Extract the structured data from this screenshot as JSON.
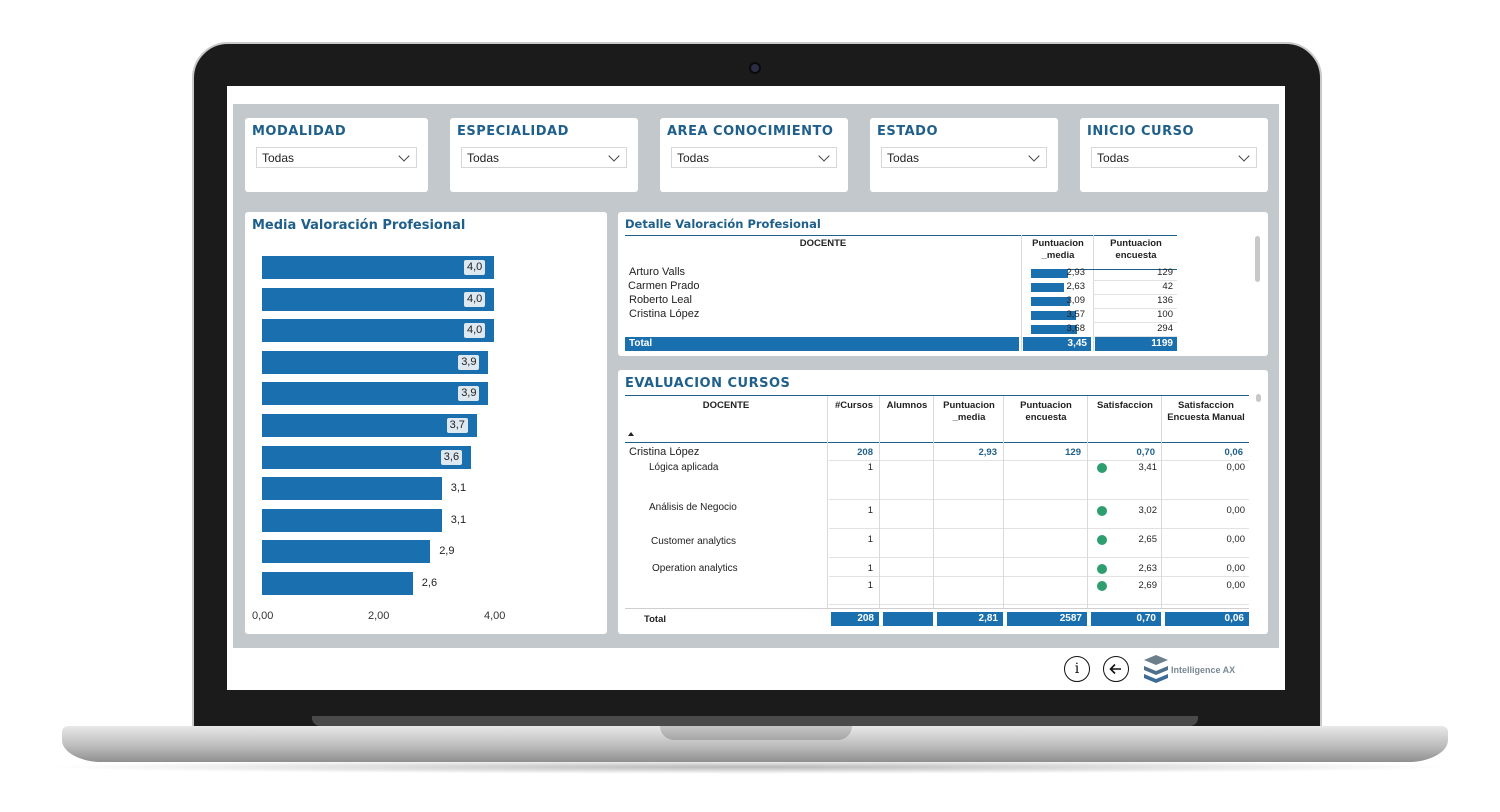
{
  "filters": [
    {
      "title": "MODALIDAD",
      "value": "Todas"
    },
    {
      "title": "ESPECIALIDAD",
      "value": "Todas"
    },
    {
      "title": "AREA CONOCIMIENTO",
      "value": "Todas"
    },
    {
      "title": "ESTADO",
      "value": "Todas"
    },
    {
      "title": "INICIO CURSO",
      "value": "Todas"
    }
  ],
  "chart_panel": {
    "title": "Media Valoración Profesional"
  },
  "chart_data": {
    "type": "bar",
    "orientation": "horizontal",
    "values": [
      4.0,
      4.0,
      4.0,
      3.9,
      3.9,
      3.7,
      3.6,
      3.1,
      3.1,
      2.9,
      2.6
    ],
    "labels": [
      "4,0",
      "4,0",
      "4,0",
      "3,9",
      "3,9",
      "3,7",
      "3,6",
      "3,1",
      "3,1",
      "2,9",
      "2,6"
    ],
    "xticks": [
      "0,00",
      "2,00",
      "4,00"
    ],
    "xlim": [
      0,
      4.2
    ],
    "color": "#1a6fae"
  },
  "detail": {
    "title": "Detalle Valoración Profesional",
    "headers": {
      "docente": "DOCENTE",
      "media": "Puntuacion _media",
      "encuesta": "Puntuacion encuesta"
    },
    "rows": [
      {
        "name": "Arturo Valls",
        "media": "2,93",
        "media_value": 2.93,
        "encuesta": "129"
      },
      {
        "name": "Carmen Prado",
        "media": "2,63",
        "media_value": 2.63,
        "encuesta": "42"
      },
      {
        "name": "Roberto Leal",
        "media": "3,09",
        "media_value": 3.09,
        "encuesta": "136"
      },
      {
        "name": "Cristina López",
        "media": "3,57",
        "media_value": 3.57,
        "encuesta": "100"
      },
      {
        "name": "",
        "media": "3,68",
        "media_value": 3.68,
        "encuesta": "294"
      }
    ],
    "total": {
      "label": "Total",
      "media": "3,45",
      "encuesta": "1199"
    }
  },
  "evaluacion": {
    "title": "EVALUACION CURSOS",
    "headers": [
      "DOCENTE",
      "#Cursos",
      "Alumnos",
      "Puntuacion _media",
      "Puntuacion encuesta",
      "Satisfaccion",
      "Satisfaccion Encuesta Manual"
    ],
    "group": {
      "name": "Cristina López",
      "cursos": "208",
      "alumnos": "",
      "media": "2,93",
      "encuesta": "129",
      "satisfaccion": "0,70",
      "manual": "0,06"
    },
    "rows": [
      {
        "name": "Lógica aplicada",
        "cursos": "1",
        "satisfaccion": "3,41",
        "manual": "0,00"
      },
      {
        "name": "Análisis de Negocio",
        "cursos": "1",
        "satisfaccion": "3,02",
        "manual": "0,00"
      },
      {
        "name": "Customer analytics",
        "cursos": "1",
        "satisfaccion": "2,65",
        "manual": "0,00"
      },
      {
        "name": "Operation analytics",
        "cursos": "1",
        "satisfaccion": "2,63",
        "manual": "0,00"
      },
      {
        "name": "",
        "cursos": "1",
        "satisfaccion": "2,69",
        "manual": "0,00"
      }
    ],
    "total": {
      "label": "Total",
      "cursos": "208",
      "alumnos": "",
      "media": "2,81",
      "encuesta": "2587",
      "satisfaccion": "0,70",
      "manual": "0,06"
    }
  },
  "footer": {
    "info_icon_text": "i",
    "back_icon": "arrow-left-icon",
    "brand": "Intelligence AX"
  },
  "colors": {
    "accent": "#1a6fae",
    "title": "#1f5f8b",
    "status_dot": "#2e9e6e",
    "canvas": "#c2c8cc"
  }
}
